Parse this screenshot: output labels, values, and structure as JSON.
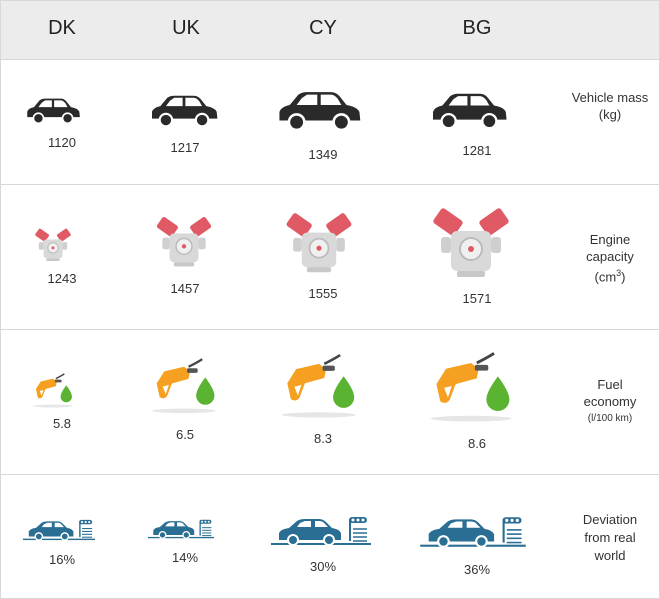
{
  "countries": [
    "DK",
    "UK",
    "CY",
    "BG"
  ],
  "rows": [
    {
      "label": "Vehicle mass",
      "unit": "(kg)",
      "values": [
        "1120",
        "1217",
        "1349",
        "1281"
      ],
      "icon": "car-icon"
    },
    {
      "label": "Engine capacity",
      "unit_base": "(cm",
      "unit_sup": "3",
      "unit_end": ")",
      "values": [
        "1243",
        "1457",
        "1555",
        "1571"
      ],
      "icon": "engine-icon"
    },
    {
      "label": "Fuel economy",
      "unit": "(l/100 km)",
      "values": [
        "5.8",
        "6.5",
        "8.3",
        "8.6"
      ],
      "icon": "fuel-nozzle-icon"
    },
    {
      "label": "Deviation from real world",
      "unit": "",
      "values": [
        "16%",
        "14%",
        "30%",
        "36%"
      ],
      "icon": "car-test-icon"
    }
  ],
  "colors": {
    "car": "#2a2a2a",
    "engine_red": "#e05a65",
    "engine_grey": "#d9d9d9",
    "nozzle_orange": "#f5a020",
    "drop_green": "#5bb332",
    "test_blue": "#2a6e93"
  }
}
